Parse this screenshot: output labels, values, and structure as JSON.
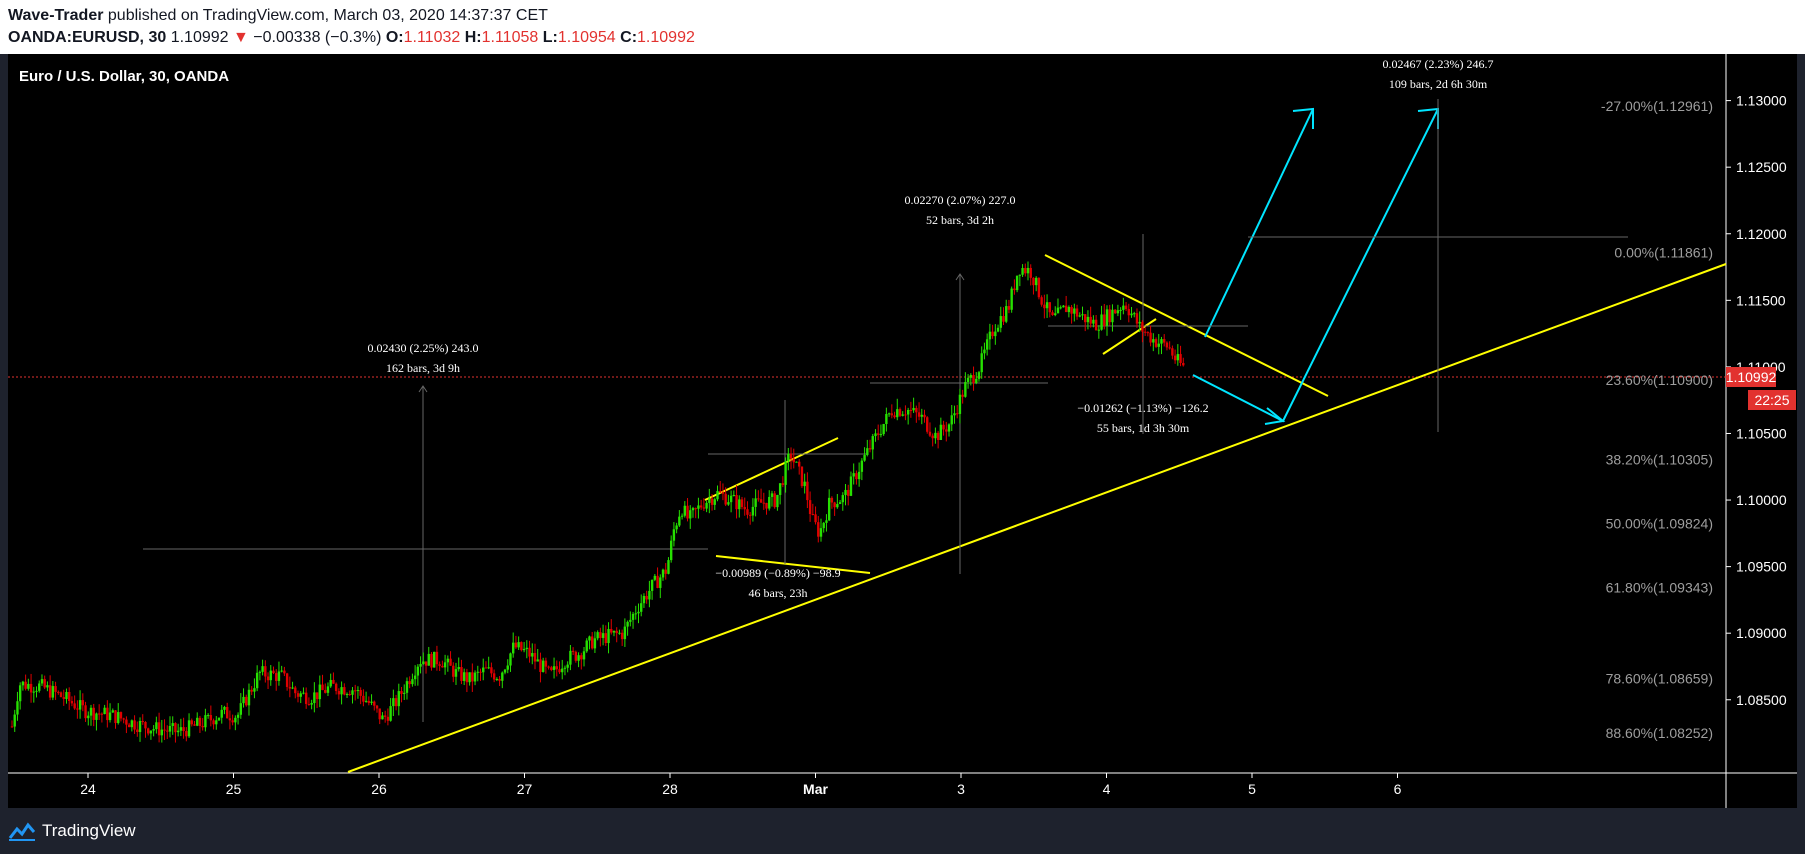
{
  "header": {
    "author": "Wave-Trader",
    "published": "published on TradingView.com, March 03, 2020 14:37:37 CET",
    "symbol": "OANDA:EURUSD, 30",
    "last": "1.10992",
    "arrow": "▼",
    "change": "−0.00338 (−0.3%)",
    "o_label": "O:",
    "o_val": "1.11032",
    "h_label": "H:",
    "h_val": "1.11058",
    "l_label": "L:",
    "l_val": "1.10954",
    "c_label": "C:",
    "c_val": "1.10992"
  },
  "chart_data": {
    "type": "candlestick",
    "title": "Euro / U.S. Dollar, 30, OANDA",
    "x_ticks": [
      "24",
      "25",
      "26",
      "27",
      "28",
      "Mar",
      "3",
      "4",
      "5",
      "6"
    ],
    "y_ticks": [
      "1.13000",
      "1.12500",
      "1.12000",
      "1.11500",
      "1.11000",
      "1.10500",
      "1.10000",
      "1.09500",
      "1.09000",
      "1.08500"
    ],
    "ylim": [
      1.0795,
      1.1335
    ],
    "current_price": "1.10992",
    "countdown": "22:25",
    "fib_levels": [
      {
        "label": "-27.00%(1.12961)",
        "price": 1.12961
      },
      {
        "label": "0.00%(1.11861)",
        "price": 1.11861
      },
      {
        "label": "23.60%(1.10900)",
        "price": 1.109
      },
      {
        "label": "38.20%(1.10305)",
        "price": 1.10305
      },
      {
        "label": "50.00%(1.09824)",
        "price": 1.09824
      },
      {
        "label": "61.80%(1.09343)",
        "price": 1.09343
      },
      {
        "label": "78.60%(1.08659)",
        "price": 1.08659
      },
      {
        "label": "88.60%(1.08252)",
        "price": 1.08252
      }
    ],
    "measurements": [
      {
        "line1": "0.02430 (2.25%) 243.0",
        "line2": "162 bars, 3d 9h"
      },
      {
        "line1": "−0.00989 (−0.89%) −98.9",
        "line2": "46 bars, 23h"
      },
      {
        "line1": "0.02270 (2.07%) 227.0",
        "line2": "52 bars, 3d 2h"
      },
      {
        "line1": "−0.01262 (−1.13%) −126.2",
        "line2": "55 bars, 1d 3h 30m"
      },
      {
        "line1": "0.02467 (2.23%) 246.7",
        "line2": "109 bars, 2d 6h 30m"
      }
    ],
    "price_path": [
      [
        24.0,
        1.083
      ],
      [
        24.05,
        1.0862
      ],
      [
        24.2,
        1.086
      ],
      [
        24.35,
        1.0852
      ],
      [
        24.5,
        1.0842
      ],
      [
        24.7,
        1.0838
      ],
      [
        24.85,
        1.0832
      ],
      [
        25.0,
        1.0828
      ],
      [
        25.15,
        1.0826
      ],
      [
        25.3,
        1.0832
      ],
      [
        25.45,
        1.084
      ],
      [
        25.55,
        1.0838
      ],
      [
        25.7,
        1.087
      ],
      [
        25.85,
        1.0868
      ],
      [
        25.95,
        1.0855
      ],
      [
        26.05,
        1.0852
      ],
      [
        26.2,
        1.086
      ],
      [
        26.35,
        1.0858
      ],
      [
        26.45,
        1.0848
      ],
      [
        26.55,
        1.0835
      ],
      [
        26.65,
        1.085
      ],
      [
        26.8,
        1.088
      ],
      [
        26.95,
        1.088
      ],
      [
        27.05,
        1.087
      ],
      [
        27.15,
        1.0865
      ],
      [
        27.25,
        1.0872
      ],
      [
        27.35,
        1.0868
      ],
      [
        27.45,
        1.089
      ],
      [
        27.55,
        1.0885
      ],
      [
        27.7,
        1.0868
      ],
      [
        27.8,
        1.088
      ],
      [
        27.9,
        1.0885
      ],
      [
        28.0,
        1.0895
      ],
      [
        28.1,
        1.0898
      ],
      [
        28.2,
        1.09
      ],
      [
        28.3,
        1.092
      ],
      [
        28.4,
        1.0935
      ],
      [
        28.5,
        1.0948
      ],
      [
        28.55,
        1.0978
      ],
      [
        28.6,
        1.0995
      ],
      [
        28.65,
        1.0985
      ],
      [
        28.75,
        1.0998
      ],
      [
        28.85,
        1.1005
      ],
      [
        28.95,
        1.1
      ],
      [
        29.05,
        1.0993
      ],
      [
        29.15,
        1.0998
      ],
      [
        29.25,
        1.1
      ],
      [
        29.35,
        1.1035
      ],
      [
        29.45,
        1.101
      ],
      [
        29.5,
        1.0985
      ],
      [
        29.55,
        1.0975
      ],
      [
        29.62,
        1.0998
      ],
      [
        29.72,
        1.1002
      ],
      [
        29.85,
        1.103
      ],
      [
        29.95,
        1.105
      ],
      [
        30.05,
        1.1068
      ],
      [
        30.15,
        1.1068
      ],
      [
        30.25,
        1.1062
      ],
      [
        30.35,
        1.1048
      ],
      [
        30.45,
        1.1058
      ],
      [
        30.55,
        1.1085
      ],
      [
        30.65,
        1.11
      ],
      [
        30.75,
        1.113
      ],
      [
        30.85,
        1.1145
      ],
      [
        30.92,
        1.1175
      ],
      [
        31.0,
        1.1172
      ],
      [
        31.08,
        1.115
      ],
      [
        31.15,
        1.1135
      ],
      [
        31.25,
        1.1145
      ],
      [
        31.35,
        1.1138
      ],
      [
        31.45,
        1.1132
      ],
      [
        31.55,
        1.114
      ],
      [
        31.65,
        1.1148
      ],
      [
        31.75,
        1.113
      ],
      [
        31.85,
        1.112
      ],
      [
        31.95,
        1.1115
      ],
      [
        32.0,
        1.1105
      ],
      [
        32.05,
        1.11
      ]
    ]
  }
}
